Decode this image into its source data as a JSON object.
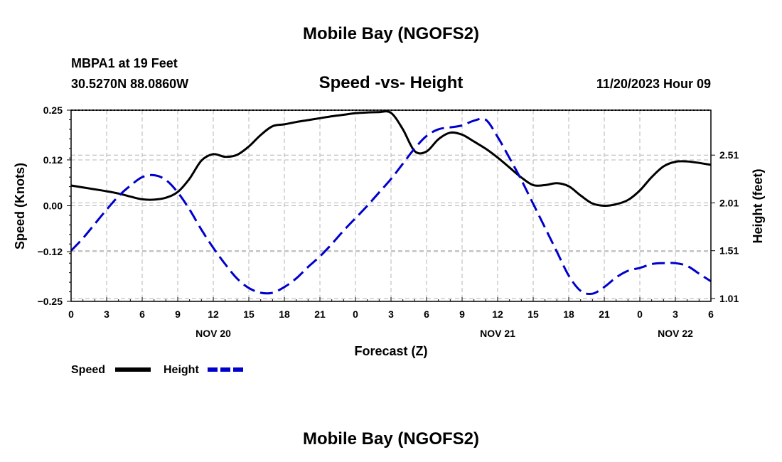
{
  "header": {
    "title": "Mobile Bay (NGOFS2)",
    "station": "MBPA1 at 19 Feet",
    "coords": "30.5270N  88.0860W",
    "subtitle": "Speed -vs- Height",
    "datetime": "11/20/2023 Hour 09"
  },
  "footer": {
    "title": "Mobile Bay (NGOFS2)"
  },
  "legend": {
    "speed_label": "Speed",
    "height_label": "Height"
  },
  "colors": {
    "speed": "#000000",
    "height": "#0000cc",
    "grid": "#b4b4b4"
  },
  "chart_data": {
    "type": "line",
    "xlabel": "Forecast (Z)",
    "ylabel_left": "Speed (Knots)",
    "ylabel_right": "Height (feet)",
    "x_range": [
      0,
      54
    ],
    "x_tick_step": 3,
    "x_tick_labels": [
      "0",
      "3",
      "6",
      "9",
      "12",
      "15",
      "18",
      "21",
      "0",
      "3",
      "6",
      "9",
      "12",
      "15",
      "18",
      "21",
      "0",
      "3",
      "6"
    ],
    "date_labels": [
      {
        "hour": 12,
        "label": "NOV 20"
      },
      {
        "hour": 36,
        "label": "NOV 21"
      },
      {
        "hour": 51,
        "label": "NOV 22"
      }
    ],
    "ylim_left": [
      -0.25,
      0.25
    ],
    "y_ticks_left": [
      {
        "value": -0.25,
        "label": "−0.25"
      },
      {
        "value": -0.12,
        "label": "−0.12"
      },
      {
        "value": 0.0,
        "label": "0.00"
      },
      {
        "value": 0.12,
        "label": "0.12"
      },
      {
        "value": 0.25,
        "label": "0.25"
      }
    ],
    "ylim_right": [
      0.98,
      2.98
    ],
    "y_ticks_right": [
      {
        "value": 1.01,
        "label": "1.01"
      },
      {
        "value": 1.51,
        "label": "1.51"
      },
      {
        "value": 2.01,
        "label": "2.01"
      },
      {
        "value": 2.51,
        "label": "2.51"
      }
    ],
    "grid": true,
    "legend_position": "bottom-left",
    "series": [
      {
        "name": "Speed",
        "axis": "left",
        "style": "solid",
        "x": [
          0,
          2,
          3,
          4,
          5,
          6,
          7,
          8,
          9,
          10,
          11,
          12,
          13,
          14,
          15,
          16,
          17,
          18,
          19,
          20,
          21,
          22,
          23,
          24,
          25,
          26,
          27,
          28,
          29,
          30,
          31,
          32,
          33,
          34,
          35,
          36,
          37,
          38,
          39,
          40,
          41,
          42,
          43,
          44,
          45,
          46,
          47,
          48,
          49,
          50,
          51,
          52,
          53,
          54
        ],
        "y": [
          0.053,
          0.043,
          0.038,
          0.032,
          0.024,
          0.017,
          0.016,
          0.021,
          0.036,
          0.071,
          0.118,
          0.135,
          0.128,
          0.133,
          0.155,
          0.185,
          0.208,
          0.213,
          0.219,
          0.224,
          0.229,
          0.234,
          0.238,
          0.242,
          0.244,
          0.245,
          0.243,
          0.2,
          0.143,
          0.142,
          0.174,
          0.191,
          0.186,
          0.168,
          0.149,
          0.126,
          0.1,
          0.074,
          0.054,
          0.054,
          0.059,
          0.051,
          0.027,
          0.006,
          0.0,
          0.004,
          0.015,
          0.04,
          0.075,
          0.103,
          0.115,
          0.116,
          0.112,
          0.107
        ]
      },
      {
        "name": "Height",
        "axis": "right",
        "style": "dashed",
        "x": [
          0,
          1,
          2,
          3,
          4,
          5,
          6,
          7,
          8,
          9,
          10,
          11,
          12,
          13,
          14,
          15,
          16,
          17,
          18,
          19,
          20,
          21,
          22,
          23,
          24,
          25,
          26,
          27,
          28,
          29,
          30,
          31,
          32,
          33,
          34,
          35,
          36,
          37,
          38,
          39,
          40,
          41,
          42,
          43,
          44,
          45,
          46,
          47,
          48,
          49,
          50,
          51,
          52,
          53,
          54
        ],
        "y": [
          1.51,
          1.64,
          1.79,
          1.94,
          2.08,
          2.19,
          2.28,
          2.3,
          2.25,
          2.12,
          1.94,
          1.73,
          1.54,
          1.37,
          1.22,
          1.12,
          1.07,
          1.07,
          1.13,
          1.22,
          1.34,
          1.45,
          1.58,
          1.72,
          1.85,
          1.98,
          2.12,
          2.26,
          2.42,
          2.58,
          2.71,
          2.78,
          2.8,
          2.82,
          2.87,
          2.88,
          2.7,
          2.48,
          2.25,
          2.0,
          1.75,
          1.5,
          1.25,
          1.09,
          1.06,
          1.13,
          1.23,
          1.3,
          1.33,
          1.37,
          1.38,
          1.38,
          1.35,
          1.27,
          1.19
        ]
      }
    ]
  }
}
